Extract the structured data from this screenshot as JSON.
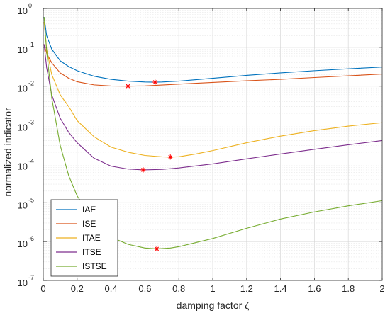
{
  "chart_data": {
    "type": "line",
    "xlabel": "damping factor ζ",
    "ylabel": "normalized indicator",
    "xlim": [
      0,
      2
    ],
    "ylim": [
      1e-07,
      1
    ],
    "yscale": "log",
    "grid": true,
    "minor_grid": true,
    "legend_placement": "bottom-left",
    "xticks": [
      "0",
      "0.2",
      "0.4",
      "0.6",
      "0.8",
      "1",
      "1.2",
      "1.4",
      "1.6",
      "1.8",
      "2"
    ],
    "yticks": [
      {
        "base": "10",
        "exp": "0"
      },
      {
        "base": "10",
        "exp": "-1"
      },
      {
        "base": "10",
        "exp": "-2"
      },
      {
        "base": "10",
        "exp": "-3"
      },
      {
        "base": "10",
        "exp": "-4"
      },
      {
        "base": "10",
        "exp": "-5"
      },
      {
        "base": "10",
        "exp": "-6"
      },
      {
        "base": "10",
        "exp": "-7"
      }
    ],
    "series": [
      {
        "name": "IAE",
        "color": "#0072BD",
        "x": [
          0.005,
          0.02,
          0.05,
          0.1,
          0.15,
          0.2,
          0.3,
          0.4,
          0.5,
          0.6,
          0.66,
          0.7,
          0.8,
          1.0,
          1.2,
          1.4,
          1.6,
          1.8,
          2.0
        ],
        "y": [
          0.6,
          0.2,
          0.09,
          0.045,
          0.032,
          0.025,
          0.018,
          0.015,
          0.0135,
          0.0128,
          0.0127,
          0.0128,
          0.0135,
          0.016,
          0.019,
          0.022,
          0.025,
          0.028,
          0.031
        ],
        "marker": {
          "x": 0.66,
          "y": 0.0127
        }
      },
      {
        "name": "ISE",
        "color": "#D95319",
        "x": [
          0.005,
          0.02,
          0.05,
          0.1,
          0.15,
          0.2,
          0.3,
          0.4,
          0.5,
          0.6,
          0.7,
          0.8,
          1.0,
          1.2,
          1.4,
          1.6,
          1.8,
          2.0
        ],
        "y": [
          0.12,
          0.07,
          0.04,
          0.022,
          0.016,
          0.013,
          0.0108,
          0.0101,
          0.01,
          0.0102,
          0.0107,
          0.0113,
          0.0125,
          0.0138,
          0.015,
          0.0167,
          0.0185,
          0.0205
        ],
        "marker": {
          "x": 0.5,
          "y": 0.01
        }
      },
      {
        "name": "ITAE",
        "color": "#EDB120",
        "x": [
          0.005,
          0.02,
          0.05,
          0.1,
          0.15,
          0.2,
          0.3,
          0.4,
          0.5,
          0.6,
          0.7,
          0.75,
          0.8,
          0.9,
          1.0,
          1.2,
          1.4,
          1.6,
          1.8,
          2.0
        ],
        "y": [
          0.45,
          0.09,
          0.02,
          0.006,
          0.003,
          0.0013,
          0.0005,
          0.00027,
          0.0002,
          0.000165,
          0.000152,
          0.00015,
          0.000153,
          0.00018,
          0.00022,
          0.00035,
          0.00052,
          0.00072,
          0.00094,
          0.00115
        ],
        "marker": {
          "x": 0.75,
          "y": 0.00015
        }
      },
      {
        "name": "ITSE",
        "color": "#7E2F8E",
        "x": [
          0.005,
          0.02,
          0.05,
          0.1,
          0.15,
          0.2,
          0.3,
          0.4,
          0.5,
          0.59,
          0.7,
          0.8,
          1.0,
          1.2,
          1.4,
          1.6,
          1.8,
          2.0
        ],
        "y": [
          0.12,
          0.03,
          0.006,
          0.0015,
          0.00065,
          0.00035,
          0.00014,
          8.75e-05,
          7.35e-05,
          7e-05,
          7.2e-05,
          7.85e-05,
          0.0001,
          0.000135,
          0.00018,
          0.000238,
          0.00031,
          0.0004
        ],
        "marker": {
          "x": 0.59,
          "y": 7e-05
        }
      },
      {
        "name": "ISTSE",
        "color": "#77AC30",
        "x": [
          0.005,
          0.02,
          0.05,
          0.1,
          0.15,
          0.2,
          0.3,
          0.4,
          0.5,
          0.6,
          0.67,
          0.75,
          0.8,
          1.0,
          1.2,
          1.4,
          1.6,
          1.8,
          2.0
        ],
        "y": [
          0.6,
          0.08,
          0.005,
          0.0003,
          5e-05,
          1.5e-05,
          3.3e-06,
          1.3e-06,
          8.5e-07,
          6.8e-07,
          6.5e-07,
          6.8e-07,
          7.4e-07,
          1.2e-06,
          2.2e-06,
          3.8e-06,
          5.8e-06,
          8.3e-06,
          1.13e-05
        ],
        "marker": {
          "x": 0.67,
          "y": 6.5e-07
        }
      }
    ]
  }
}
